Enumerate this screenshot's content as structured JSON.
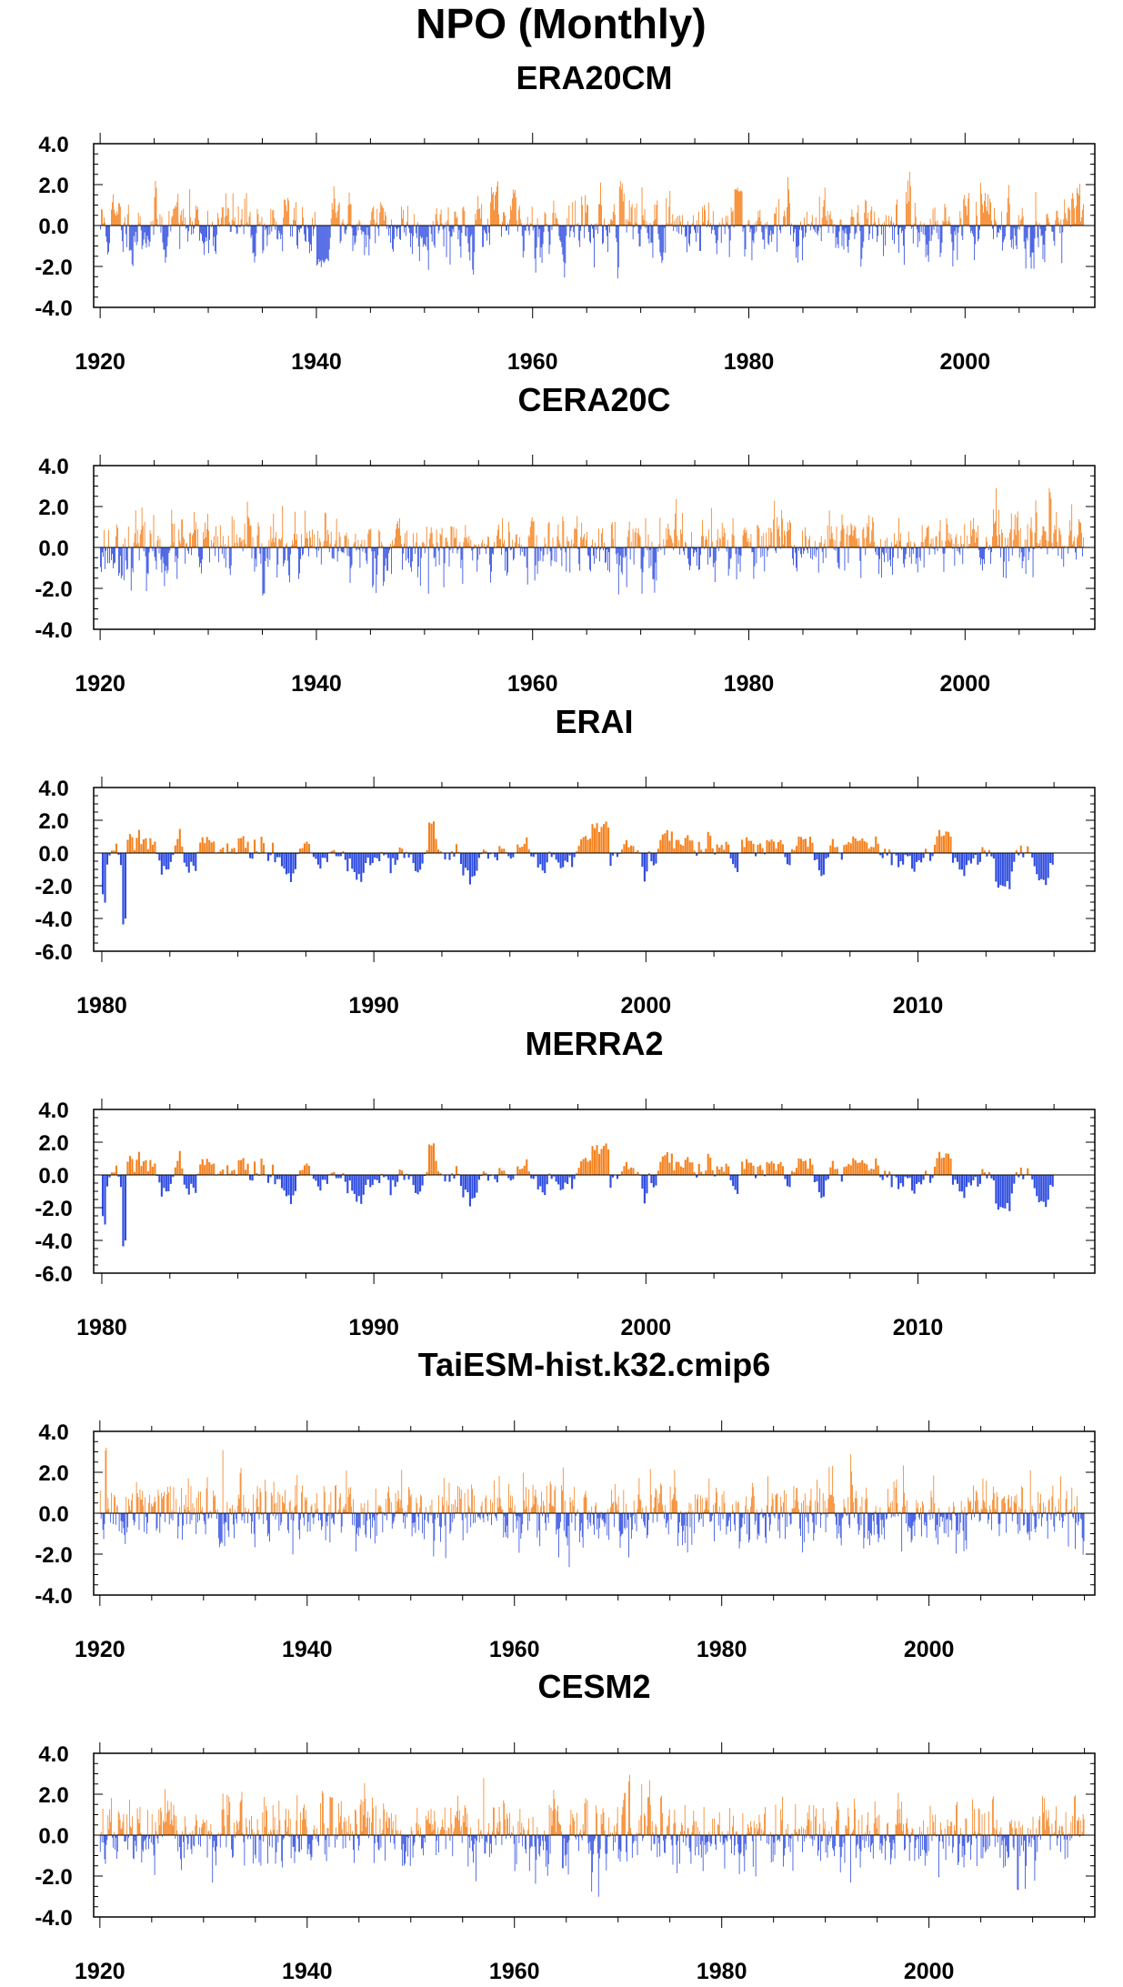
{
  "figure": {
    "title": "NPO (Monthly)"
  },
  "colors": {
    "positive": "#f5821f",
    "negative": "#2f4de0",
    "frame": "#000000"
  },
  "chart_data": [
    {
      "type": "bar",
      "title": "ERA20CM",
      "xlim": [
        1919.4,
        2012.0
      ],
      "ylim": [
        -4.0,
        4.0
      ],
      "ymajor": [
        4.0,
        2.0,
        0.0,
        -2.0,
        -4.0
      ],
      "yticklabels": [
        "4.0",
        "2.0",
        "0.0",
        "-2.0",
        "-4.0"
      ],
      "xticks": [
        1920,
        1940,
        1960,
        1980,
        2000
      ],
      "xticklabels": [
        "1920",
        "1940",
        "1960",
        "1980",
        "2000"
      ],
      "x_start": 1920.0,
      "n_months": 1092,
      "seed": 11,
      "smooth": 0.55,
      "amp": 0.85,
      "trend": 0.0,
      "events": [
        [
          1940.0,
          1941.0,
          -1.8
        ],
        [
          1978.6,
          1979.4,
          1.6
        ],
        [
          1926.9,
          1927.2,
          1.2
        ],
        [
          1968.0,
          1968.3,
          2.0
        ]
      ]
    },
    {
      "type": "bar",
      "title": "CERA20C",
      "xlim": [
        1919.4,
        2012.0
      ],
      "ylim": [
        -4.0,
        4.0
      ],
      "ymajor": [
        4.0,
        2.0,
        0.0,
        -2.0,
        -4.0
      ],
      "yticklabels": [
        "4.0",
        "2.0",
        "0.0",
        "-2.0",
        "-4.0"
      ],
      "xticks": [
        1920,
        1940,
        1960,
        1980,
        2000
      ],
      "xticklabels": [
        "1920",
        "1940",
        "1960",
        "1980",
        "2000"
      ],
      "x_start": 1920.0,
      "n_months": 1092,
      "seed": 23,
      "smooth": 0.35,
      "amp": 0.8,
      "trend": 0.25,
      "events": [
        [
          2007.7,
          2007.9,
          2.6
        ],
        [
          1935.0,
          1935.2,
          -2.2
        ]
      ]
    },
    {
      "type": "bar",
      "title": "ERAI",
      "xlim": [
        1979.7,
        2016.5
      ],
      "ylim": [
        -6.0,
        4.0
      ],
      "ymajor": [
        4.0,
        2.0,
        0.0,
        -2.0,
        -4.0,
        -6.0
      ],
      "yticklabels": [
        "4.0",
        "2.0",
        "0.0",
        "-2.0",
        "-4.0",
        "-6.0"
      ],
      "xticks": [
        1980,
        1990,
        2000,
        2010
      ],
      "xticklabels": [
        "1980",
        "1990",
        "2000",
        "2010"
      ],
      "x_start": 1980.0,
      "n_months": 420,
      "seed": 37,
      "smooth": 0.8,
      "amp": 0.75,
      "trend": 0.0,
      "events": [
        [
          1980.0,
          1980.15,
          -2.8
        ],
        [
          1980.7,
          1980.85,
          -4.2
        ],
        [
          1998.0,
          1998.6,
          1.6
        ],
        [
          2012.8,
          2013.4,
          -2.0
        ],
        [
          1992.0,
          1992.2,
          1.8
        ]
      ]
    },
    {
      "type": "bar",
      "title": "MERRA2",
      "xlim": [
        1979.7,
        2016.5
      ],
      "ylim": [
        -6.0,
        4.0
      ],
      "ymajor": [
        4.0,
        2.0,
        0.0,
        -2.0,
        -4.0,
        -6.0
      ],
      "yticklabels": [
        "4.0",
        "2.0",
        "0.0",
        "-2.0",
        "-4.0",
        "-6.0"
      ],
      "xticks": [
        1980,
        1990,
        2000,
        2010
      ],
      "xticklabels": [
        "1980",
        "1990",
        "2000",
        "2010"
      ],
      "x_start": 1980.0,
      "n_months": 420,
      "seed": 37,
      "smooth": 0.8,
      "amp": 0.75,
      "trend": 0.0,
      "events": [
        [
          1980.0,
          1980.15,
          -2.8
        ],
        [
          1980.7,
          1980.85,
          -4.2
        ],
        [
          1998.0,
          1998.6,
          1.6
        ],
        [
          2012.8,
          2013.4,
          -2.0
        ],
        [
          1992.0,
          1992.2,
          1.8
        ]
      ]
    },
    {
      "type": "bar",
      "title": "TaiESM-hist.k32.cmip6",
      "xlim": [
        1919.4,
        2016.0
      ],
      "ylim": [
        -4.0,
        4.0
      ],
      "ymajor": [
        4.0,
        2.0,
        0.0,
        -2.0,
        -4.0
      ],
      "yticklabels": [
        "4.0",
        "2.0",
        "0.0",
        "-2.0",
        "-4.0"
      ],
      "xticks": [
        1920,
        1940,
        1960,
        1980,
        2000
      ],
      "xticklabels": [
        "1920",
        "1940",
        "1960",
        "1980",
        "2000"
      ],
      "x_start": 1920.0,
      "n_months": 1140,
      "seed": 51,
      "smooth": 0.3,
      "amp": 0.85,
      "trend": 0.0,
      "events": [
        [
          1931.8,
          1931.9,
          3.3
        ],
        [
          1920.5,
          1920.6,
          3.1
        ]
      ]
    },
    {
      "type": "bar",
      "title": "CESM2",
      "xlim": [
        1919.4,
        2016.0
      ],
      "ylim": [
        -4.0,
        4.0
      ],
      "ymajor": [
        4.0,
        2.0,
        0.0,
        -2.0,
        -4.0
      ],
      "yticklabels": [
        "4.0",
        "2.0",
        "0.0",
        "-2.0",
        "-4.0"
      ],
      "xticks": [
        1920,
        1940,
        1960,
        1980,
        2000
      ],
      "xticklabels": [
        "1920",
        "1940",
        "1960",
        "1980",
        "2000"
      ],
      "x_start": 1920.0,
      "n_months": 1140,
      "seed": 67,
      "smooth": 0.3,
      "amp": 0.85,
      "trend": 0.0,
      "events": [
        [
          1971.0,
          1971.1,
          2.6
        ],
        [
          2008.5,
          2008.6,
          -2.6
        ]
      ]
    }
  ]
}
